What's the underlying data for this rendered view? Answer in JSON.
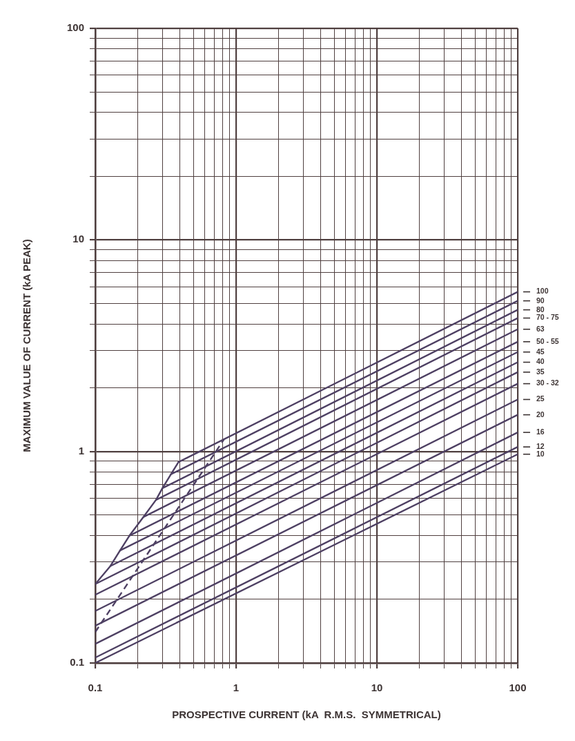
{
  "chart_data": {
    "type": "line",
    "xlabel": "PROSPECTIVE CURRENT (kA  R.M.S.  SYMMETRICAL)",
    "ylabel": "MAXIMUM VALUE OF CURRENT (kA PEAK)",
    "log": "xy",
    "grid": true,
    "xlim": [
      0.1,
      100
    ],
    "ylim": [
      0.1,
      100
    ],
    "xticks": [
      0.1,
      {
        "value": 0.2,
        "label": null
      },
      {
        "value": 0.3,
        "label": null
      },
      {
        "value": 0.4,
        "label": null
      },
      {
        "value": 0.5,
        "label": null
      },
      {
        "value": 0.6,
        "label": null
      },
      {
        "value": 0.7,
        "label": null
      },
      {
        "value": 0.8,
        "label": null
      },
      {
        "value": 0.9,
        "label": null
      },
      1,
      {
        "value": 2,
        "label": null
      },
      {
        "value": 3,
        "label": null
      },
      {
        "value": 4,
        "label": null
      },
      {
        "value": 5,
        "label": null
      },
      {
        "value": 6,
        "label": null
      },
      {
        "value": 7,
        "label": null
      },
      {
        "value": 8,
        "label": null
      },
      {
        "value": 9,
        "label": null
      },
      10,
      {
        "value": 20,
        "label": null
      },
      {
        "value": 30,
        "label": null
      },
      {
        "value": 40,
        "label": null
      },
      {
        "value": 50,
        "label": null
      },
      {
        "value": 60,
        "label": null
      },
      {
        "value": 70,
        "label": null
      },
      {
        "value": 80,
        "label": null
      },
      {
        "value": 90,
        "label": null
      },
      100
    ],
    "yticks": [
      0.1,
      {
        "value": 0.2,
        "label": null
      },
      {
        "value": 0.3,
        "label": null
      },
      {
        "value": 0.4,
        "label": null
      },
      {
        "value": 0.5,
        "label": null
      },
      {
        "value": 0.6,
        "label": null
      },
      {
        "value": 0.7,
        "label": null
      },
      {
        "value": 0.8,
        "label": null
      },
      {
        "value": 0.9,
        "label": null
      },
      1,
      {
        "value": 2,
        "label": null
      },
      {
        "value": 3,
        "label": null
      },
      {
        "value": 4,
        "label": null
      },
      {
        "value": 5,
        "label": null
      },
      {
        "value": 6,
        "label": null
      },
      {
        "value": 7,
        "label": null
      },
      {
        "value": 8,
        "label": null
      },
      {
        "value": 9,
        "label": null
      },
      10,
      {
        "value": 20,
        "label": null
      },
      {
        "value": 30,
        "label": null
      },
      {
        "value": 40,
        "label": null
      },
      {
        "value": 50,
        "label": null
      },
      {
        "value": 60,
        "label": null
      },
      {
        "value": 70,
        "label": null
      },
      {
        "value": 80,
        "label": null
      },
      {
        "value": 90,
        "label": null
      },
      100
    ],
    "series": [
      {
        "name": "100",
        "color": "#4e4063",
        "x": [
          0.39,
          100
        ],
        "values": [
          0.89,
          5.68
        ]
      },
      {
        "name": "90",
        "color": "#4e4063",
        "x": [
          0.345,
          100
        ],
        "values": [
          0.78,
          5.15
        ]
      },
      {
        "name": "80",
        "color": "#4e4063",
        "x": [
          0.3,
          100
        ],
        "values": [
          0.67,
          4.67
        ]
      },
      {
        "name": "70 - 75",
        "color": "#4e4063",
        "x": [
          0.27,
          100
        ],
        "values": [
          0.59,
          4.27
        ]
      },
      {
        "name": "63",
        "color": "#4e4063",
        "x": [
          0.22,
          100
        ],
        "values": [
          0.49,
          3.78
        ]
      },
      {
        "name": "50 - 55",
        "color": "#4e4063",
        "x": [
          0.175,
          100
        ],
        "values": [
          0.4,
          3.3
        ]
      },
      {
        "name": "45",
        "color": "#4e4063",
        "x": [
          0.15,
          100
        ],
        "values": [
          0.34,
          2.95
        ]
      },
      {
        "name": "40",
        "color": "#4e4063",
        "x": [
          0.128,
          100
        ],
        "values": [
          0.287,
          2.64
        ]
      },
      {
        "name": "35",
        "color": "#4e4063",
        "x": [
          0.1,
          100
        ],
        "values": [
          0.236,
          2.37
        ]
      },
      {
        "name": "30 - 32",
        "color": "#4e4063",
        "x": [
          0.1,
          100
        ],
        "values": [
          0.21,
          2.09
        ]
      },
      {
        "name": "25",
        "color": "#4e4063",
        "x": [
          0.1,
          100
        ],
        "values": [
          0.176,
          1.76
        ]
      },
      {
        "name": "20",
        "color": "#4e4063",
        "x": [
          0.1,
          100
        ],
        "values": [
          0.15,
          1.49
        ]
      },
      {
        "name": "16",
        "color": "#4e4063",
        "x": [
          0.1,
          100
        ],
        "values": [
          0.123,
          1.23
        ]
      },
      {
        "name": "12",
        "color": "#4e4063",
        "x": [
          0.1,
          100
        ],
        "values": [
          0.106,
          1.05
        ]
      },
      {
        "name": "10",
        "color": "#4e4063",
        "x": [
          0.1,
          100
        ],
        "values": [
          0.1,
          0.97
        ]
      },
      {
        "color": "#4e4063",
        "x": [
          0.1,
          0.128,
          0.15,
          0.175,
          0.22,
          0.27,
          0.3,
          0.345,
          0.39
        ],
        "values": [
          0.236,
          0.287,
          0.34,
          0.4,
          0.49,
          0.59,
          0.67,
          0.78,
          0.89
        ]
      },
      {
        "color": "#4e4063",
        "line_style": "dashed",
        "x": [
          0.1,
          0.82
        ],
        "values": [
          0.14,
          1.14
        ]
      }
    ]
  }
}
